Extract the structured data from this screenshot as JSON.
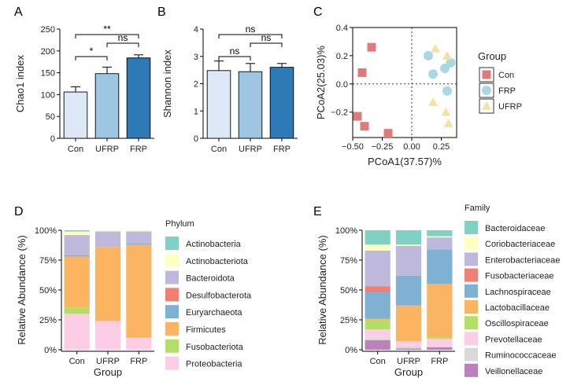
{
  "panels": {
    "A": {
      "letter": "A",
      "chart_data": {
        "type": "bar",
        "categories": [
          "Con",
          "UFRP",
          "FRP"
        ],
        "values": [
          106,
          148,
          184
        ],
        "errors": [
          12,
          15,
          7
        ],
        "colors": [
          "#dce8f5",
          "#9ec6e2",
          "#2e7ab6"
        ],
        "ylabel": "Chao1 index",
        "ylim": [
          0,
          250
        ],
        "yticks": [
          0,
          50,
          100,
          150,
          200,
          250
        ],
        "significance": [
          {
            "from": 0,
            "to": 1,
            "label": "*"
          },
          {
            "from": 1,
            "to": 2,
            "label": "ns"
          },
          {
            "from": 0,
            "to": 2,
            "label": "**"
          }
        ]
      }
    },
    "B": {
      "letter": "B",
      "chart_data": {
        "type": "bar",
        "categories": [
          "Con",
          "UFRP",
          "FRP"
        ],
        "values": [
          2.48,
          2.44,
          2.6
        ],
        "errors": [
          0.35,
          0.3,
          0.14
        ],
        "colors": [
          "#dce8f5",
          "#9ec6e2",
          "#2e7ab6"
        ],
        "ylabel": "Shannon index",
        "ylim": [
          0,
          4
        ],
        "yticks": [
          0,
          1,
          2,
          3,
          4
        ],
        "significance": [
          {
            "from": 0,
            "to": 1,
            "label": "ns"
          },
          {
            "from": 1,
            "to": 2,
            "label": "ns"
          },
          {
            "from": 0,
            "to": 2,
            "label": "ns"
          }
        ]
      }
    },
    "C": {
      "letter": "C",
      "chart_data": {
        "type": "scatter",
        "xlabel": "PCoA1(37.57)%",
        "ylabel": "PCoA2(25.03)%",
        "xlim": [
          -0.5,
          0.38
        ],
        "ylim": [
          -0.38,
          0.4
        ],
        "xticks": [
          -0.5,
          -0.25,
          0.0,
          0.25
        ],
        "xtick_labels": [
          "−0.50",
          "−0.25",
          "0.00",
          "0.25"
        ],
        "yticks": [
          -0.2,
          0.0,
          0.2,
          0.4
        ],
        "ytick_labels": [
          "−0.2",
          "0.0",
          "0.2",
          "0.4"
        ],
        "legend_title": "Group",
        "series": [
          {
            "name": "Con",
            "marker": "square",
            "color": "#e07a7a",
            "x": [
              -0.34,
              -0.42,
              -0.46,
              -0.4,
              -0.2
            ],
            "y": [
              0.26,
              0.08,
              -0.23,
              -0.3,
              -0.35
            ]
          },
          {
            "name": "FRP",
            "marker": "circle",
            "color": "#a9d7e6",
            "x": [
              0.14,
              0.18,
              0.28,
              0.33,
              0.3
            ],
            "y": [
              0.2,
              0.07,
              0.11,
              0.15,
              -0.05
            ]
          },
          {
            "name": "UFRP",
            "marker": "triangle",
            "color": "#f3e3a3",
            "x": [
              0.2,
              0.3,
              0.18,
              0.29,
              0.31
            ],
            "y": [
              0.25,
              0.2,
              -0.13,
              -0.2,
              -0.28
            ]
          }
        ]
      }
    },
    "D": {
      "letter": "D",
      "chart_data": {
        "type": "bar",
        "stacked": true,
        "categories": [
          "Con",
          "UFRP",
          "FRP"
        ],
        "xlabel": "Group",
        "ylabel": "Relative Abundance (%)",
        "yticks": [
          0,
          25,
          50,
          75,
          100
        ],
        "ytick_labels": [
          "0%",
          "25%",
          "50%",
          "75%",
          "100%"
        ],
        "legend_title": "Phylum",
        "series": [
          {
            "name": "Actinobacteria",
            "color": "#7fd1c4",
            "values": [
              1,
              0,
              0
            ]
          },
          {
            "name": "Actinobacteriota",
            "color": "#ffffbf",
            "values": [
              3,
              1,
              1
            ]
          },
          {
            "name": "Bacteroidota",
            "color": "#bdb8dc",
            "values": [
              17,
              13,
              10
            ]
          },
          {
            "name": "Desulfobacterota",
            "color": "#f27f72",
            "values": [
              0,
              0,
              0
            ]
          },
          {
            "name": "Euryarchaeota",
            "color": "#7fb1d3",
            "values": [
              1,
              0,
              1
            ]
          },
          {
            "name": "Firmicutes",
            "color": "#fbb462",
            "values": [
              43,
              62,
              78
            ]
          },
          {
            "name": "Fusobacteriota",
            "color": "#b3de68",
            "values": [
              5,
              0,
              0
            ]
          },
          {
            "name": "Proteobacteria",
            "color": "#fccde5",
            "values": [
              30,
              24,
              10
            ]
          }
        ]
      }
    },
    "E": {
      "letter": "E",
      "chart_data": {
        "type": "bar",
        "stacked": true,
        "categories": [
          "Con",
          "UFRP",
          "FRP"
        ],
        "xlabel": "Group",
        "ylabel": "Relative Abundance (%)",
        "yticks": [
          0,
          25,
          50,
          75,
          100
        ],
        "ytick_labels": [
          "0%",
          "25%",
          "50%",
          "75%",
          "100%"
        ],
        "legend_title": "Family",
        "series": [
          {
            "name": "Bacteroidaceae",
            "color": "#7fd1c4",
            "values": [
              12,
              12,
              5
            ]
          },
          {
            "name": "Coriobacteriaceae",
            "color": "#ffffbf",
            "values": [
              5,
              1,
              1
            ]
          },
          {
            "name": "Enterobacteriaceae",
            "color": "#bdb8dc",
            "values": [
              30,
              25,
              10
            ]
          },
          {
            "name": "Fusobacteriaceae",
            "color": "#f27f72",
            "values": [
              5,
              0,
              0
            ]
          },
          {
            "name": "Lachnospiraceae",
            "color": "#7fb1d3",
            "values": [
              22,
              25,
              29
            ]
          },
          {
            "name": "Lactobacillaceae",
            "color": "#fbb462",
            "values": [
              1,
              30,
              45
            ]
          },
          {
            "name": "Oscillospiraceae",
            "color": "#b3de68",
            "values": [
              8,
              0,
              1
            ]
          },
          {
            "name": "Prevotellaceae",
            "color": "#fccde5",
            "values": [
              7,
              4,
              6
            ]
          },
          {
            "name": "Ruminococcaceae",
            "color": "#d9d9d9",
            "values": [
              2,
              2,
              1
            ]
          },
          {
            "name": "Veillonellaceae",
            "color": "#bc80bd",
            "values": [
              8,
              1,
              2
            ]
          }
        ]
      }
    }
  }
}
